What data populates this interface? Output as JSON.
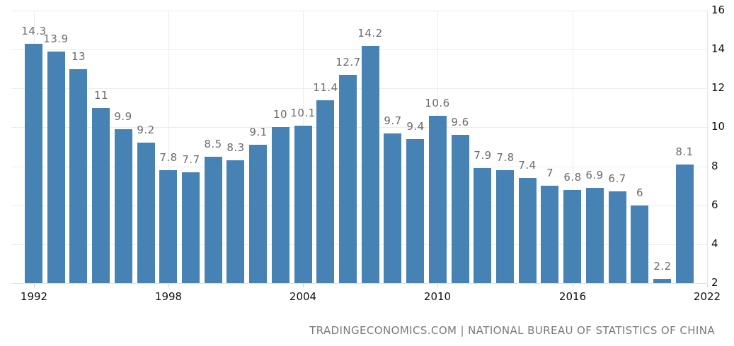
{
  "chart_data": {
    "type": "bar",
    "title": "",
    "xlabel": "",
    "ylabel": "",
    "categories": [
      "1992",
      "1993",
      "1994",
      "1995",
      "1996",
      "1997",
      "1998",
      "1999",
      "2000",
      "2001",
      "2002",
      "2003",
      "2004",
      "2005",
      "2006",
      "2007",
      "2008",
      "2009",
      "2010",
      "2011",
      "2012",
      "2013",
      "2014",
      "2015",
      "2016",
      "2017",
      "2018",
      "2019",
      "2020",
      "2021"
    ],
    "values": [
      14.3,
      13.9,
      13,
      11,
      9.9,
      9.2,
      7.8,
      7.7,
      8.5,
      8.3,
      9.1,
      10,
      10.1,
      11.4,
      12.7,
      14.2,
      9.7,
      9.4,
      10.6,
      9.6,
      7.9,
      7.8,
      7.4,
      7,
      6.8,
      6.9,
      6.7,
      6,
      2.2,
      8.1
    ],
    "value_labels": [
      "14.3",
      "13.9",
      "13",
      "11",
      "9.9",
      "9.2",
      "7.8",
      "7.7",
      "8.5",
      "8.3",
      "9.1",
      "10",
      "10.1",
      "11.4",
      "12.7",
      "14.2",
      "9.7",
      "9.4",
      "10.6",
      "9.6",
      "7.9",
      "7.8",
      "7.4",
      "7",
      "6.8",
      "6.9",
      "6.7",
      "6",
      "2.2",
      "8.1"
    ],
    "ylim": [
      2,
      16
    ],
    "y_ticks": [
      "16",
      "14",
      "12",
      "10",
      "8",
      "6",
      "4",
      "2"
    ],
    "x_ticks": [
      "1992",
      "1998",
      "2004",
      "2010",
      "2016",
      "2022"
    ],
    "y_axis_position": "right",
    "grid": true,
    "bar_color": "#4682b4",
    "legend": null
  },
  "footer": {
    "source": "TRADINGECONOMICS.COM | NATIONAL BUREAU OF STATISTICS OF CHINA"
  }
}
